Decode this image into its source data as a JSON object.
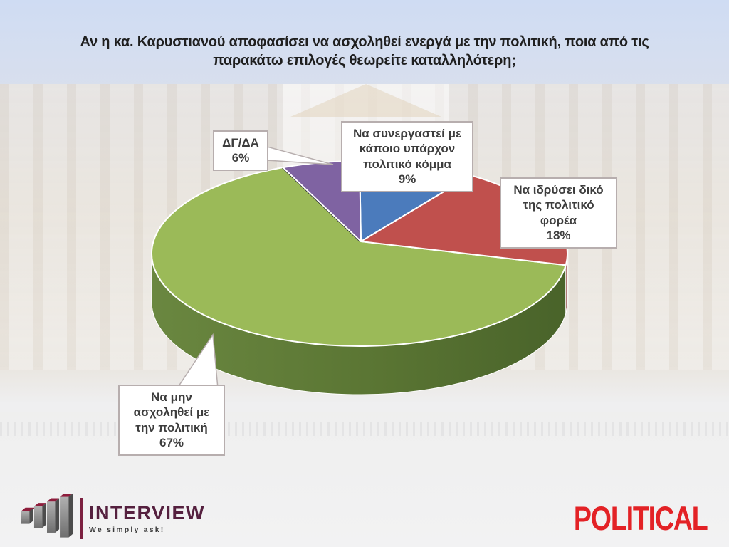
{
  "title": "Αν η κα. Καρυστιανού αποφασίσει να ασχοληθεί ενεργά με την πολιτική, ποια από τις παρακάτω επιλογές θεωρείτε καταλληλότερη;",
  "chart_data": {
    "type": "pie",
    "style": "3d",
    "start_angle_deg": -90,
    "direction": "clockwise",
    "legend_position": "callout-labels",
    "slices": [
      {
        "label": "Να συνεργαστεί με κάποιο υπάρχον πολιτικό κόμμα",
        "pct_label": "9%",
        "value": 9,
        "color": "#4B7BBC",
        "side_color": "#39598B"
      },
      {
        "label": "Να ιδρύσει δικό της πολιτικό φορέα",
        "pct_label": "18%",
        "value": 18,
        "color": "#C0504D",
        "side_color": "#8A3B39"
      },
      {
        "label": "Να μην ασχοληθεί με την πολιτική",
        "pct_label": "67%",
        "value": 67,
        "color": "#9BBA58",
        "side_color": "#68843D",
        "side_color2": "#4A6429"
      },
      {
        "label": "ΔΓ/ΔΑ",
        "pct_label": "6%",
        "value": 6,
        "color": "#7F63A2",
        "side_color": "#5D4579"
      }
    ]
  },
  "branding": {
    "interview": {
      "name": "INTERVIEW",
      "tagline": "We simply ask!",
      "accent": "#7c2040"
    },
    "political": {
      "name": "POLITICAL",
      "color": "#e32226"
    }
  }
}
